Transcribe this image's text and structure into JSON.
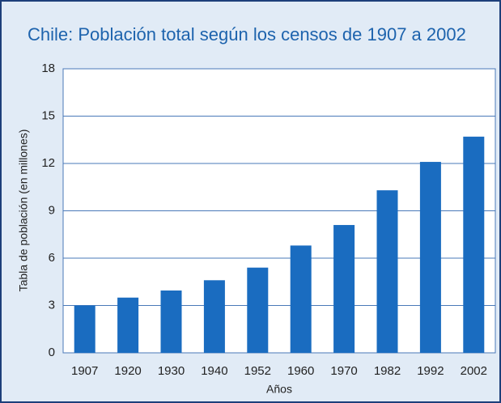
{
  "chart_data": {
    "type": "bar",
    "title": "Chile: Población total según los censos de 1907 a 2002",
    "xlabel": "Años",
    "ylabel": "Tabla de población (en millones)",
    "categories": [
      "1907",
      "1920",
      "1930",
      "1940",
      "1952",
      "1960",
      "1970",
      "1982",
      "1992",
      "2002"
    ],
    "values": [
      3.0,
      3.5,
      3.95,
      4.6,
      5.4,
      6.8,
      8.1,
      10.3,
      12.1,
      13.7
    ],
    "color": "#1a6cc0",
    "ylim": [
      0,
      18
    ],
    "yticks": [
      0,
      3,
      6,
      9,
      12,
      15,
      18
    ],
    "grid": true
  }
}
